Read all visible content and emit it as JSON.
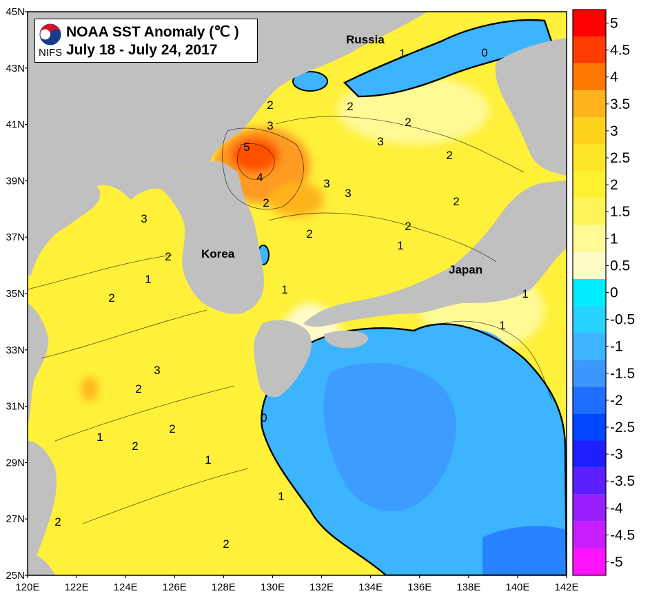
{
  "title": {
    "line1": "NOAA SST Anomaly (℃ )",
    "line2": "July 18 - July 24, 2017",
    "logo_text": "NIFS"
  },
  "place_labels": [
    "Russia",
    "Korea",
    "Japan"
  ],
  "axes": {
    "x_ticks": [
      "120E",
      "122E",
      "124E",
      "126E",
      "128E",
      "130E",
      "132E",
      "134E",
      "136E",
      "138E",
      "140E",
      "142E"
    ],
    "y_ticks": [
      "45N",
      "43N",
      "41N",
      "39N",
      "37N",
      "35N",
      "33N",
      "31N",
      "29N",
      "27N",
      "25N"
    ]
  },
  "colorbar": {
    "labels": [
      "5",
      "4.5",
      "4",
      "3.5",
      "3",
      "2.5",
      "2",
      "1.5",
      "1",
      "0.5",
      "0",
      "-0.5",
      "-1",
      "-1.5",
      "-2",
      "-2.5",
      "-3",
      "-3.5",
      "-4",
      "-4.5",
      "-5"
    ],
    "colors": [
      "#ff0000",
      "#ff3c00",
      "#ff7800",
      "#ffb41e",
      "#ffd21e",
      "#ffe628",
      "#fff032",
      "#fff55a",
      "#fff996",
      "#fffcc8",
      "#00eeff",
      "#28d2ff",
      "#3cb4ff",
      "#3c96ff",
      "#1e6eff",
      "#0046ff",
      "#1e1eff",
      "#5a1eff",
      "#961eff",
      "#c81eff",
      "#ff14ff"
    ]
  },
  "colors": {
    "land": "#c0c0c0",
    "sea_warm": "#fff03a",
    "sea_mild": "#fff77a",
    "sea_pale": "#fffcc8",
    "anomaly_hot": "#ff7800",
    "anomaly_cold": "#3cb4ff"
  },
  "contour_labels": [
    "5",
    "4",
    "3",
    "3",
    "3",
    "3",
    "3",
    "3",
    "2",
    "2",
    "2",
    "2",
    "2",
    "2",
    "2",
    "2",
    "2",
    "2",
    "2",
    "2",
    "2",
    "2",
    "2",
    "1",
    "1",
    "1",
    "1",
    "1",
    "1",
    "1",
    "1",
    "1",
    "0",
    "0"
  ]
}
